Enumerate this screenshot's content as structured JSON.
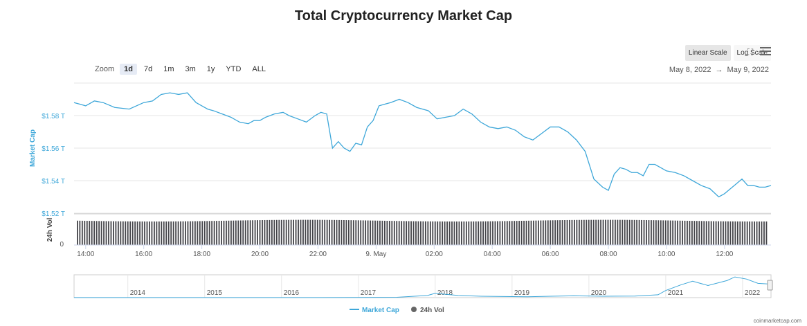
{
  "chart_data": {
    "type": "line",
    "title": "Total Cryptocurrency Market Cap",
    "ylabel": "Market Cap",
    "y2label": "24h Vol",
    "y_ticks": [
      "$1.52 T",
      "$1.54 T",
      "$1.56 T",
      "$1.58 T"
    ],
    "y_tick_values": [
      1.52,
      1.54,
      1.56,
      1.58
    ],
    "ylim": [
      1.52,
      1.6
    ],
    "vol_tick": "0",
    "x_ticks": [
      "14:00",
      "16:00",
      "18:00",
      "20:00",
      "22:00",
      "9. May",
      "02:00",
      "04:00",
      "06:00",
      "08:00",
      "10:00",
      "12:00"
    ],
    "x_hours": [
      14,
      16,
      18,
      20,
      22,
      24,
      26,
      28,
      30,
      32,
      34,
      36
    ],
    "xlim_hours": [
      13.6,
      37.6
    ],
    "series": [
      {
        "name": "Market Cap",
        "color": "#3ea7d9",
        "x_hours": [
          13.6,
          13.8,
          14.0,
          14.3,
          14.6,
          15.0,
          15.5,
          16.0,
          16.3,
          16.6,
          16.9,
          17.2,
          17.5,
          17.8,
          18.0,
          18.2,
          18.4,
          18.7,
          19.0,
          19.3,
          19.6,
          19.8,
          20.0,
          20.2,
          20.5,
          20.8,
          21.0,
          21.3,
          21.6,
          21.9,
          22.1,
          22.3,
          22.5,
          22.7,
          22.9,
          23.1,
          23.3,
          23.5,
          23.7,
          23.9,
          24.1,
          24.3,
          24.5,
          24.8,
          25.1,
          25.4,
          25.8,
          26.1,
          26.4,
          26.7,
          27.0,
          27.3,
          27.6,
          27.9,
          28.2,
          28.5,
          28.8,
          29.1,
          29.4,
          29.7,
          30.0,
          30.3,
          30.6,
          30.9,
          31.2,
          31.5,
          31.8,
          32.0,
          32.2,
          32.4,
          32.6,
          32.8,
          33.0,
          33.2,
          33.4,
          33.6,
          33.8,
          34.0,
          34.3,
          34.6,
          34.9,
          35.2,
          35.5,
          35.8,
          36.0,
          36.2,
          36.4,
          36.6,
          36.8,
          37.0,
          37.2,
          37.4,
          37.6
        ],
        "values": [
          1.588,
          1.587,
          1.586,
          1.589,
          1.588,
          1.585,
          1.584,
          1.588,
          1.589,
          1.593,
          1.594,
          1.593,
          1.594,
          1.588,
          1.586,
          1.584,
          1.583,
          1.581,
          1.579,
          1.576,
          1.575,
          1.577,
          1.577,
          1.579,
          1.581,
          1.582,
          1.58,
          1.578,
          1.576,
          1.58,
          1.582,
          1.581,
          1.56,
          1.564,
          1.56,
          1.558,
          1.563,
          1.562,
          1.573,
          1.577,
          1.586,
          1.587,
          1.588,
          1.59,
          1.588,
          1.585,
          1.583,
          1.578,
          1.579,
          1.58,
          1.584,
          1.581,
          1.576,
          1.573,
          1.572,
          1.573,
          1.571,
          1.567,
          1.565,
          1.569,
          1.573,
          1.573,
          1.57,
          1.565,
          1.558,
          1.541,
          1.536,
          1.534,
          1.544,
          1.548,
          1.547,
          1.545,
          1.545,
          1.543,
          1.55,
          1.55,
          1.548,
          1.546,
          1.545,
          1.543,
          1.54,
          1.537,
          1.535,
          1.53,
          1.532,
          1.535,
          1.538,
          1.541,
          1.537,
          1.537,
          1.536,
          1.536,
          1.537
        ]
      },
      {
        "name": "24h Vol",
        "color": "#434348",
        "level_fraction": 0.8
      }
    ],
    "navigator_labels": [
      "2014",
      "2015",
      "2016",
      "2017",
      "2018",
      "2019",
      "2020",
      "2021",
      "2022"
    ],
    "navigator_years": [
      2014,
      2015,
      2016,
      2017,
      2018,
      2019,
      2020,
      2021,
      2022
    ],
    "navigator_xlim": [
      2013.3,
      2022.37
    ],
    "navigator_values": [
      0.01,
      0.01,
      0.01,
      0.01,
      0.01,
      0.01,
      0.01,
      0.02,
      0.05,
      0.3,
      0.6,
      0.3,
      0.2,
      0.15,
      0.12,
      0.2,
      0.25,
      0.2,
      0.22,
      0.4,
      1.0,
      1.8,
      2.3,
      1.7,
      2.4,
      2.9,
      2.6,
      2.0,
      1.9
    ],
    "navigator_value_years": [
      2013.3,
      2014.0,
      2014.5,
      2015.0,
      2015.5,
      2016.0,
      2016.5,
      2017.0,
      2017.5,
      2017.9,
      2018.0,
      2018.3,
      2018.6,
      2019.0,
      2019.2,
      2019.5,
      2019.8,
      2020.2,
      2020.6,
      2020.9,
      2021.0,
      2021.2,
      2021.35,
      2021.55,
      2021.8,
      2021.9,
      2022.05,
      2022.2,
      2022.35
    ],
    "navigator_ylim": [
      0,
      3.2
    ],
    "legend": [
      {
        "label": "Market Cap",
        "color": "#3ea7d9"
      },
      {
        "label": "24h Vol",
        "color": "#666666"
      }
    ],
    "legend_position": "bottom-center"
  },
  "zoom": {
    "label": "Zoom",
    "buttons": [
      "1d",
      "7d",
      "1m",
      "3m",
      "1y",
      "YTD",
      "ALL"
    ],
    "active": "1d"
  },
  "scale": {
    "linear_label": "Linear Scale",
    "log_label": "Log Scale"
  },
  "date_range": {
    "from": "May 8, 2022",
    "arrow": "→",
    "to": "May 9, 2022"
  },
  "watermark": "coinmarketcap.com"
}
